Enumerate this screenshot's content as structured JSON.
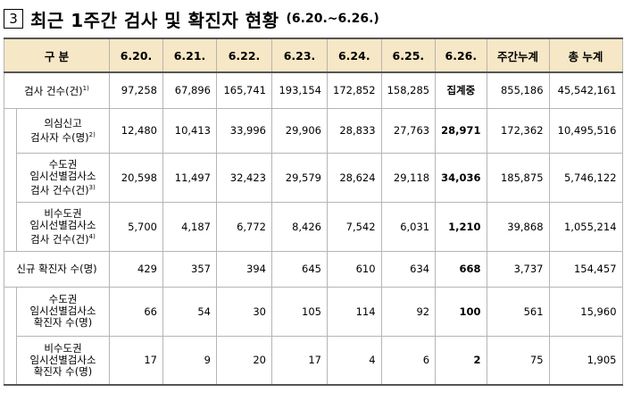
{
  "title": {
    "number": "3",
    "main": "최근 1주간 검사 및 확진자 현황",
    "date_range": "(6.20.~6.26.)"
  },
  "table": {
    "headers": [
      "구 분",
      "6.20.",
      "6.21.",
      "6.22.",
      "6.23.",
      "6.24.",
      "6.25.",
      "6.26.",
      "주간누계",
      "총 누계"
    ],
    "rows": [
      {
        "label_lines": [
          "검사 건수(건)"
        ],
        "sup": "1)",
        "values": [
          "97,258",
          "67,896",
          "165,741",
          "193,154",
          "172,852",
          "158,285",
          "집계중",
          "855,186",
          "45,542,161"
        ]
      },
      {
        "label_lines": [
          "의심신고",
          "검사자 수(명)"
        ],
        "sup": "2)",
        "values": [
          "12,480",
          "10,413",
          "33,996",
          "29,906",
          "28,833",
          "27,763",
          "28,971",
          "172,362",
          "10,495,516"
        ]
      },
      {
        "label_lines": [
          "수도권",
          "임시선별검사소",
          "검사 건수(건)"
        ],
        "sup": "3)",
        "values": [
          "20,598",
          "11,497",
          "32,423",
          "29,579",
          "28,624",
          "29,118",
          "34,036",
          "185,875",
          "5,746,122"
        ]
      },
      {
        "label_lines": [
          "비수도권",
          "임시선별검사소",
          "검사 건수(건)"
        ],
        "sup": "4)",
        "values": [
          "5,700",
          "4,187",
          "6,772",
          "8,426",
          "7,542",
          "6,031",
          "1,210",
          "39,868",
          "1,055,214"
        ]
      },
      {
        "label_lines": [
          "신규 확진자 수(명)"
        ],
        "sup": "",
        "values": [
          "429",
          "357",
          "394",
          "645",
          "610",
          "634",
          "668",
          "3,737",
          "154,457"
        ]
      },
      {
        "label_lines": [
          "수도권",
          "임시선별검사소",
          "확진자 수(명)"
        ],
        "sup": "",
        "values": [
          "66",
          "54",
          "30",
          "105",
          "114",
          "92",
          "100",
          "561",
          "15,960"
        ]
      },
      {
        "label_lines": [
          "비수도권",
          "임시선별검사소",
          "확진자 수(명)"
        ],
        "sup": "",
        "values": [
          "17",
          "9",
          "20",
          "17",
          "4",
          "6",
          "2",
          "75",
          "1,905"
        ]
      }
    ]
  }
}
